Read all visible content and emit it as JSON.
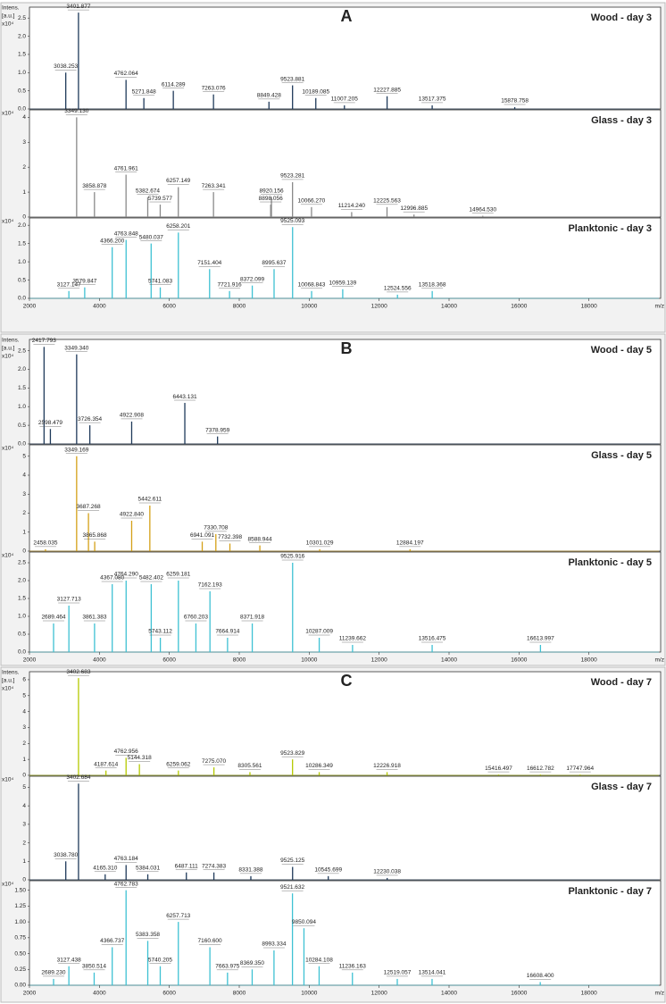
{
  "chart_data": [
    {
      "type": "spectrum",
      "panel": "A",
      "title": "Wood - day 3",
      "y_label": [
        "Intens.",
        "[a.u.]"
      ],
      "y_unit": "x10⁴",
      "color": "#1f3a5a",
      "x": [
        3038.253,
        3401.877,
        4762.064,
        5271.848,
        6114.289,
        7263.076,
        8849.428,
        9523.881,
        10189.085,
        11007.205,
        12227.885,
        13517.375,
        15878.758
      ],
      "x_labels": [
        "3038.253",
        "3401.877",
        "4762.064",
        "5271.848",
        "6114.289",
        "7263.076",
        "8849.428",
        "9523.881",
        "10189.085",
        "11007.205",
        "12227.885",
        "13517.375",
        "15878.758"
      ],
      "values": [
        1.0,
        2.65,
        0.8,
        0.3,
        0.5,
        0.4,
        0.2,
        0.65,
        0.3,
        0.1,
        0.35,
        0.1,
        0.05
      ],
      "xlim": [
        2000,
        20000
      ],
      "ylim": [
        0,
        2.8
      ],
      "yticks": [
        {
          "value": 0,
          "label": "0.0"
        },
        {
          "value": 0.5,
          "label": "0.5"
        },
        {
          "value": 1,
          "label": "1.0"
        },
        {
          "value": 1.5,
          "label": "1.5"
        },
        {
          "value": 2,
          "label": "2.0"
        },
        {
          "value": 2.5,
          "label": "2.5"
        }
      ]
    },
    {
      "type": "spectrum",
      "title": "Glass - day 3",
      "y_unit": "x10⁴",
      "color": "#8a8a8a",
      "x": [
        3349.13,
        3858.878,
        4761.961,
        5382.674,
        5739.577,
        6257.149,
        7263.341,
        8920.156,
        8898.056,
        9523.281,
        10066.27,
        11214.24,
        12225.563,
        12996.885,
        14964.53
      ],
      "x_labels": [
        "3349.130",
        "3858.878",
        "4761.961",
        "5382.674",
        "5739.577",
        "6257.149",
        "7263.341",
        "8920.156",
        "8898.056",
        "9523.281",
        "10066.270",
        "11214.240",
        "12225.563",
        "12996.885",
        "14964.530"
      ],
      "values": [
        4.0,
        1.0,
        1.7,
        0.8,
        0.5,
        1.2,
        1.0,
        0.8,
        0.5,
        1.4,
        0.4,
        0.2,
        0.4,
        0.1,
        0.05
      ],
      "xlim": [
        2000,
        20000
      ],
      "ylim": [
        0,
        4.3
      ],
      "yticks": [
        0,
        1,
        2,
        3,
        4
      ]
    },
    {
      "type": "spectrum",
      "title": "Planktonic - day 3",
      "y_unit": "x10⁴",
      "color": "#3ec1d3",
      "x": [
        3127.147,
        3579.847,
        4366.2,
        4763.848,
        5480.037,
        5741.083,
        6258.201,
        7151.404,
        7721.916,
        8372.099,
        8995.637,
        9525.093,
        10068.843,
        10959.139,
        12524.556,
        13518.368
      ],
      "x_labels": [
        "3127.147",
        "3579.847",
        "4366.200",
        "4763.848",
        "5480.037",
        "5741.083",
        "6258.201",
        "7151.404",
        "7721.916",
        "8372.099",
        "8995.637",
        "9525.093",
        "10068.843",
        "10959.139",
        "12524.556",
        "13518.368"
      ],
      "values": [
        0.2,
        0.3,
        1.4,
        1.6,
        1.5,
        0.3,
        1.8,
        0.8,
        0.2,
        0.35,
        0.8,
        1.95,
        0.2,
        0.25,
        0.1,
        0.2
      ],
      "xlim": [
        2000,
        20000
      ],
      "ylim": [
        0,
        2.2
      ],
      "yticks": [
        {
          "value": 0,
          "label": "0.0"
        },
        {
          "value": 0.5,
          "label": "0.5"
        },
        {
          "value": 1,
          "label": "1.0"
        },
        {
          "value": 1.5,
          "label": "1.5"
        },
        {
          "value": 2,
          "label": "2.0"
        }
      ],
      "xticks": [
        2000,
        4000,
        6000,
        8000,
        10000,
        12000,
        14000,
        16000,
        18000
      ],
      "x_label": "m/z"
    },
    {
      "type": "spectrum",
      "panel": "B",
      "title": "Wood - day 5",
      "y_label": [
        "Intens.",
        "[a.u.]"
      ],
      "y_unit": "x10⁴",
      "color": "#1f3a5a",
      "x": [
        2417.793,
        2598.479,
        3349.34,
        3726.354,
        4922.908,
        6443.131,
        7378.959
      ],
      "x_labels": [
        "2417.793",
        "2598.479",
        "3349.340",
        "3726.354",
        "4922.908",
        "6443.131",
        "7378.959"
      ],
      "values": [
        2.6,
        0.4,
        2.4,
        0.5,
        0.6,
        1.1,
        0.2
      ],
      "xlim": [
        2000,
        20000
      ],
      "ylim": [
        0,
        2.8
      ],
      "yticks": [
        {
          "value": 0,
          "label": "0.0"
        },
        {
          "value": 0.5,
          "label": "0.5"
        },
        {
          "value": 1,
          "label": "1.0"
        },
        {
          "value": 1.5,
          "label": "1.5"
        },
        {
          "value": 2,
          "label": "2.0"
        },
        {
          "value": 2.5,
          "label": "2.5"
        }
      ]
    },
    {
      "type": "spectrum",
      "title": "Glass - day 5",
      "y_unit": "x10⁴",
      "color": "#d4a017",
      "x": [
        2458.035,
        3349.169,
        3687.268,
        3865.868,
        4922.84,
        5442.611,
        6941.091,
        7330.708,
        7732.398,
        8588.944,
        10301.029,
        12884.197
      ],
      "x_labels": [
        "2458.035",
        "3349.169",
        "3687.268",
        "3865.868",
        "4922.840",
        "5442.611",
        "6941.091",
        "7330.708",
        "7732.398",
        "8588.944",
        "10301.029",
        "12884.197"
      ],
      "values": [
        0.1,
        5.0,
        2.0,
        0.5,
        1.6,
        2.4,
        0.5,
        0.9,
        0.4,
        0.3,
        0.1,
        0.1
      ],
      "xlim": [
        2000,
        20000
      ],
      "ylim": [
        0,
        5.6
      ],
      "yticks": [
        0,
        1,
        2,
        3,
        4,
        5
      ]
    },
    {
      "type": "spectrum",
      "title": "Planktonic - day 5",
      "y_unit": "x10⁴",
      "color": "#3ec1d3",
      "x": [
        2689.464,
        3127.713,
        3861.383,
        4367.08,
        4764.29,
        5482.402,
        5743.112,
        6259.181,
        6760.203,
        7162.193,
        7664.914,
        8371.918,
        9525.916,
        10287.009,
        11239.662,
        13516.475,
        16613.997
      ],
      "x_labels": [
        "2689.464",
        "3127.713",
        "3861.383",
        "4367.080",
        "4764.290",
        "5482.402",
        "5743.112",
        "6259.181",
        "6760.203",
        "7162.193",
        "7664.914",
        "8371.918",
        "9525.916",
        "10287.009",
        "11239.662",
        "13516.475",
        "16613.997"
      ],
      "values": [
        0.8,
        1.3,
        0.8,
        1.9,
        2.0,
        1.9,
        0.4,
        2.0,
        0.8,
        1.7,
        0.4,
        0.8,
        2.5,
        0.4,
        0.2,
        0.2,
        0.2
      ],
      "xlim": [
        2000,
        20000
      ],
      "ylim": [
        0,
        2.8
      ],
      "yticks": [
        {
          "value": 0,
          "label": "0.0"
        },
        {
          "value": 0.5,
          "label": "0.5"
        },
        {
          "value": 1,
          "label": "1.0"
        },
        {
          "value": 1.5,
          "label": "1.5"
        },
        {
          "value": 2,
          "label": "2.0"
        },
        {
          "value": 2.5,
          "label": "2.5"
        }
      ],
      "xticks": [
        2000,
        4000,
        6000,
        8000,
        10000,
        12000,
        14000,
        16000,
        18000
      ],
      "x_label": "m/z"
    },
    {
      "type": "spectrum",
      "panel": "C",
      "title": "Wood - day 7",
      "y_label": [
        "Intens.",
        "[a.u.]"
      ],
      "y_unit": "x10⁴",
      "color": "#b5c900",
      "x": [
        3402.683,
        4187.614,
        4762.956,
        5144.318,
        6259.062,
        7275.07,
        8305.561,
        9523.829,
        10286.349,
        12226.918,
        15416.497,
        16612.782,
        17747.964
      ],
      "x_labels": [
        "3402.683",
        "4187.614",
        "4762.956",
        "5144.318",
        "6259.062",
        "7275.070",
        "8305.561",
        "9523.829",
        "10286.349",
        "12226.918",
        "15416.497",
        "16612.782",
        "17747.964"
      ],
      "values": [
        6.1,
        0.3,
        1.1,
        0.7,
        0.3,
        0.5,
        0.2,
        1.0,
        0.2,
        0.2,
        0.05,
        0.05,
        0.05
      ],
      "xlim": [
        2000,
        20000
      ],
      "ylim": [
        0,
        6.5
      ],
      "yticks": [
        0,
        1,
        2,
        3,
        4,
        5,
        6
      ]
    },
    {
      "type": "spectrum",
      "title": "Glass - day 7",
      "y_unit": "x10⁴",
      "color": "#1f3a5a",
      "x": [
        3038.78,
        3402.684,
        4165.31,
        4763.184,
        5384.031,
        6487.111,
        7274.383,
        8331.388,
        9525.125,
        10545.699,
        12230.038
      ],
      "x_labels": [
        "3038.780",
        "3402.684",
        "4165.310",
        "4763.184",
        "5384.031",
        "6487.111",
        "7274.383",
        "8331.388",
        "9525.125",
        "10545.699",
        "12230.038"
      ],
      "values": [
        1.0,
        5.2,
        0.3,
        0.8,
        0.3,
        0.4,
        0.4,
        0.2,
        0.7,
        0.2,
        0.1
      ],
      "xlim": [
        2000,
        20000
      ],
      "ylim": [
        0,
        5.6
      ],
      "yticks": [
        0,
        1,
        2,
        3,
        4,
        5
      ]
    },
    {
      "type": "spectrum",
      "title": "Planktonic - day 7",
      "y_unit": "x10⁴",
      "color": "#3ec1d3",
      "x": [
        2689.23,
        3127.438,
        3850.514,
        4366.737,
        4762.783,
        5383.358,
        5740.205,
        6257.713,
        7160.6,
        7663.975,
        8369.35,
        8993.334,
        9521.632,
        9850.094,
        10284.108,
        11236.163,
        12519.057,
        13514.041,
        16608.4
      ],
      "x_labels": [
        "2689.230",
        "3127.438",
        "3850.514",
        "4366.737",
        "4762.783",
        "5383.358",
        "5740.205",
        "6257.713",
        "7160.600",
        "7663.975",
        "8369.350",
        "8993.334",
        "9521.632",
        "9850.094",
        "10284.108",
        "11236.163",
        "12519.057",
        "13514.041",
        "16608.400"
      ],
      "values": [
        0.1,
        0.3,
        0.2,
        0.6,
        1.5,
        0.7,
        0.3,
        1.0,
        0.6,
        0.2,
        0.25,
        0.55,
        1.45,
        0.9,
        0.3,
        0.2,
        0.1,
        0.1,
        0.05
      ],
      "xlim": [
        2000,
        20000
      ],
      "ylim": [
        0,
        1.65
      ],
      "yticks": [
        {
          "value": 0,
          "label": "0.00"
        },
        {
          "value": 0.25,
          "label": "0.25"
        },
        {
          "value": 0.5,
          "label": "0.50"
        },
        {
          "value": 0.75,
          "label": "0.75"
        },
        {
          "value": 1,
          "label": "1.00"
        },
        {
          "value": 1.25,
          "label": "1.25"
        },
        {
          "value": 1.5,
          "label": "1.50"
        }
      ],
      "xticks": [
        2000,
        4000,
        6000,
        8000,
        10000,
        12000,
        14000,
        16000,
        18000
      ],
      "x_label": "m/z"
    }
  ]
}
